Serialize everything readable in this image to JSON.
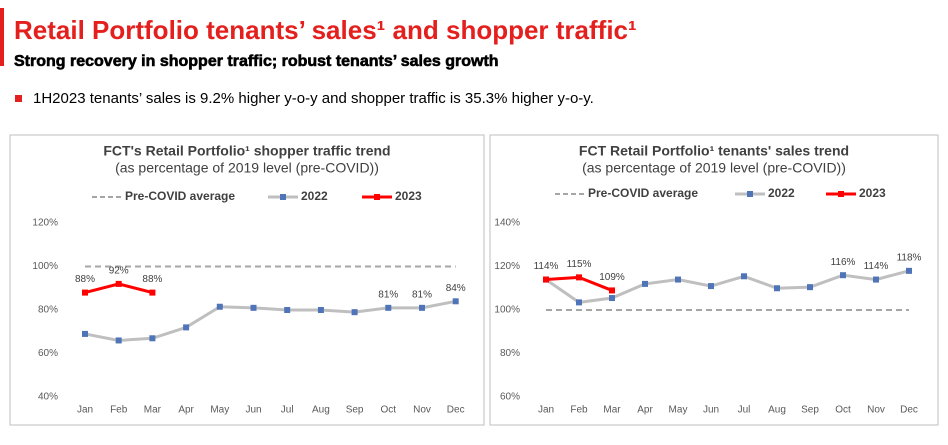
{
  "slide": {
    "title": "Retail Portfolio tenants’ sales¹ and shopper traffic¹",
    "subtitle": "Strong recovery in shopper traffic; robust tenants’ sales growth",
    "bullet": "1H2023 tenants’ sales is 9.2% higher y-o-y and shopper traffic is 35.3% higher y-o-y."
  },
  "chart_data": [
    {
      "type": "line",
      "title": "FCT's Retail Portfolio¹ shopper traffic trend",
      "subtitle": "(as percentage of 2019 level (pre-COVID))",
      "categories": [
        "Jan",
        "Feb",
        "Mar",
        "Apr",
        "May",
        "Jun",
        "Jul",
        "Aug",
        "Sep",
        "Oct",
        "Nov",
        "Dec"
      ],
      "ylim": [
        40,
        120
      ],
      "yticks": [
        {
          "value": 40,
          "label": "40%"
        },
        {
          "value": 60,
          "label": "60%"
        },
        {
          "value": 80,
          "label": "80%"
        },
        {
          "value": 100,
          "label": "100%"
        },
        {
          "value": 120,
          "label": "120%"
        }
      ],
      "grid": false,
      "series": [
        {
          "name": "Pre-COVID average",
          "color": "#a6a6a6",
          "dashed": true,
          "values": [
            100,
            100,
            100,
            100,
            100,
            100,
            100,
            100,
            100,
            100,
            100,
            100
          ]
        },
        {
          "name": "2022",
          "color": "#bfbfbf",
          "marker_color": "#4f74b8",
          "values": [
            69,
            66,
            67,
            72,
            81.5,
            81,
            80,
            80,
            79,
            81,
            81,
            84
          ],
          "value_labels": [
            null,
            null,
            null,
            null,
            null,
            null,
            null,
            null,
            null,
            "81%",
            "81%",
            "84%"
          ]
        },
        {
          "name": "2023",
          "color": "#ff0000",
          "marker_color": "#ff0000",
          "values": [
            88,
            92,
            88,
            null,
            null,
            null,
            null,
            null,
            null,
            null,
            null,
            null
          ],
          "value_labels": [
            "88%",
            "92%",
            "88%",
            null,
            null,
            null,
            null,
            null,
            null,
            null,
            null,
            null
          ]
        }
      ]
    },
    {
      "type": "line",
      "title": "FCT Retail Portfolio¹ tenants' sales trend",
      "subtitle": "(as percentage of 2019 level (pre-COVID))",
      "categories": [
        "Jan",
        "Feb",
        "Mar",
        "Apr",
        "May",
        "Jun",
        "Jul",
        "Aug",
        "Sep",
        "Oct",
        "Nov",
        "Dec"
      ],
      "ylim": [
        60,
        140
      ],
      "yticks": [
        {
          "value": 60,
          "label": "60%"
        },
        {
          "value": 80,
          "label": "80%"
        },
        {
          "value": 100,
          "label": "100%"
        },
        {
          "value": 120,
          "label": "120%"
        },
        {
          "value": 140,
          "label": "140%"
        }
      ],
      "grid": false,
      "series": [
        {
          "name": "Pre-COVID average",
          "color": "#a6a6a6",
          "dashed": true,
          "values": [
            100,
            100,
            100,
            100,
            100,
            100,
            100,
            100,
            100,
            100,
            100,
            100
          ]
        },
        {
          "name": "2022",
          "color": "#bfbfbf",
          "marker_color": "#4f74b8",
          "values": [
            114,
            103.5,
            105.5,
            112,
            114,
            111,
            115.5,
            110,
            110.5,
            116,
            114,
            118
          ],
          "value_labels": [
            null,
            null,
            null,
            null,
            null,
            null,
            null,
            null,
            null,
            "116%",
            "114%",
            "118%"
          ]
        },
        {
          "name": "2023",
          "color": "#ff0000",
          "marker_color": "#ff0000",
          "values": [
            114,
            115,
            109,
            null,
            null,
            null,
            null,
            null,
            null,
            null,
            null,
            null
          ],
          "value_labels": [
            "114%",
            "115%",
            "109%",
            null,
            null,
            null,
            null,
            null,
            null,
            null,
            null,
            null
          ]
        }
      ]
    }
  ]
}
